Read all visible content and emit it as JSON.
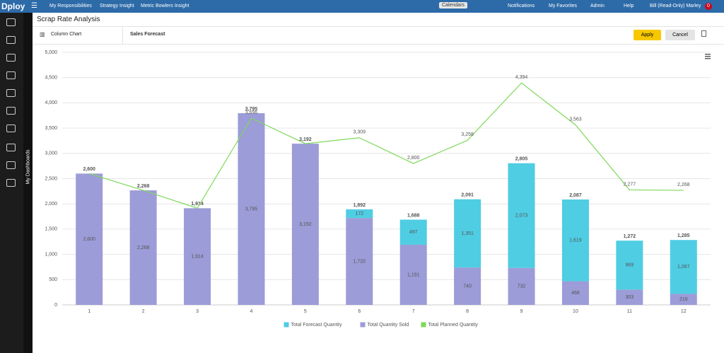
{
  "navbar": {
    "logo": "Dploy",
    "menu": [
      "My Responsibilities",
      "Strategy Insight",
      "Metric Bowlers Insight"
    ],
    "calendars": "Calendars",
    "right": [
      "Notifications",
      "My Favorites",
      "Admin",
      "Help",
      "Bill (Read-Only) Marley"
    ],
    "badge": "0"
  },
  "sidebar": {
    "label": "My Dashboards"
  },
  "header": {
    "title": "Scrap Rate Analysis"
  },
  "toolbar": {
    "chart_type": "Column Chart",
    "report": "Sales Forecast",
    "apply": "Apply",
    "cancel": "Cancel"
  },
  "chart_data": {
    "type": "bar",
    "stacked": true,
    "grid": true,
    "legend": "bottom",
    "categories": [
      "1",
      "2",
      "3",
      "4",
      "5",
      "6",
      "7",
      "8",
      "9",
      "10",
      "11",
      "12"
    ],
    "ylim": [
      0,
      5000
    ],
    "yticks": [
      0,
      500,
      {
        "value": 1000,
        "label": "1,000"
      },
      {
        "value": 1500,
        "label": "1,500"
      },
      {
        "value": 2000,
        "label": "2,000"
      },
      {
        "value": 2500,
        "label": "2,500"
      },
      {
        "value": 3000,
        "label": "3,000"
      },
      {
        "value": 3500,
        "label": "3,500"
      },
      {
        "value": 4000,
        "label": "4,000"
      },
      {
        "value": 4500,
        "label": "4,500"
      },
      {
        "value": 5000,
        "label": "5,000"
      }
    ],
    "series": [
      {
        "name": "Total Forecast Quantity",
        "type": "bar",
        "color": "#4fcde3",
        "values": [
          null,
          null,
          null,
          null,
          null,
          172,
          497,
          1351,
          2073,
          1619,
          969,
          1067
        ],
        "value_labels": [
          null,
          null,
          null,
          null,
          null,
          "172",
          "497",
          "1,351",
          "2,073",
          "1,619",
          "969",
          "1,067"
        ]
      },
      {
        "name": "Total Quantity Sold",
        "type": "bar",
        "color": "#9c9cd8",
        "values": [
          2600,
          2268,
          1914,
          3795,
          3192,
          1720,
          1191,
          740,
          732,
          468,
          303,
          218
        ],
        "value_labels": [
          "2,600",
          "2,268",
          "1,914",
          "3,795",
          "3,192",
          "1,720",
          "1,191",
          "740",
          "732",
          "468",
          "303",
          "218"
        ]
      },
      {
        "name": "Total Planned Quantity",
        "type": "line",
        "color": "#7fd85a",
        "values": [
          2600,
          2268,
          1914,
          3696,
          3192,
          3309,
          2800,
          3258,
          4394,
          3563,
          2277,
          2268
        ],
        "value_labels": [
          null,
          null,
          null,
          "3,696",
          null,
          "3,309",
          "2,800",
          "3,258",
          "4,394",
          "3,563",
          "2,277",
          "2,268"
        ]
      }
    ],
    "totals": [
      "2,600",
      "2,268",
      "1,914",
      "3,795",
      "3,192",
      "1,892",
      "1,688",
      "2,091",
      "2,805",
      "2,087",
      "1,272",
      "1,285"
    ]
  }
}
